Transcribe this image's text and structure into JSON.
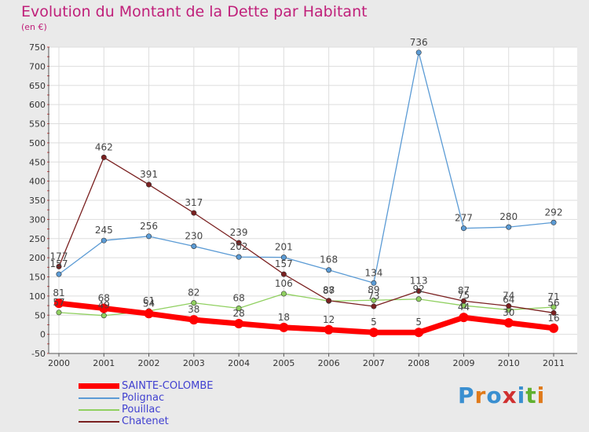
{
  "header": {
    "title": "Evolution du Montant de la Dette par Habitant",
    "subtitle": "(en €)"
  },
  "logo": {
    "text": "Proxiti",
    "colors": [
      "#3a8fd0",
      "#e07a1a",
      "#3a8fd0",
      "#d03030",
      "#3a8fd0",
      "#60b030",
      "#e07a1a"
    ]
  },
  "chart_data": {
    "type": "line",
    "title": "Evolution du Montant de la Dette par Habitant",
    "subtitle": "(en €)",
    "x": [
      "2000",
      "2001",
      "2002",
      "2003",
      "2004",
      "2005",
      "2006",
      "2007",
      "2008",
      "2009",
      "2010",
      "2011"
    ],
    "ylim": [
      -50,
      750
    ],
    "yticks": [
      -50,
      0,
      50,
      100,
      150,
      200,
      250,
      300,
      350,
      400,
      450,
      500,
      550,
      600,
      650,
      700,
      750
    ],
    "grid": true,
    "legend_position": "bottom-left",
    "series": [
      {
        "name": "SAINTE-COLOMBE",
        "color": "#ff0000",
        "values": [
          81,
          68,
          54,
          38,
          28,
          18,
          12,
          5,
          5,
          44,
          30,
          16
        ],
        "labels": [
          "81",
          "68",
          "54",
          "38",
          "28",
          "18",
          "12",
          "5",
          "5",
          "44",
          "30",
          "16"
        ]
      },
      {
        "name": "Polignac",
        "color": "#5b9bd5",
        "values": [
          157,
          245,
          256,
          230,
          202,
          201,
          168,
          134,
          736,
          277,
          280,
          292
        ],
        "labels": [
          "157",
          "245",
          "256",
          "230",
          "202",
          "201",
          "168",
          "134",
          "736",
          "277",
          "280",
          "292"
        ]
      },
      {
        "name": "Pouillac",
        "color": "#90d060",
        "values": [
          57,
          49,
          61,
          82,
          68,
          106,
          87,
          89,
          92,
          75,
          64,
          71
        ],
        "labels": [
          "57",
          "49",
          "61",
          "82",
          "68",
          "106",
          "87",
          "89",
          "92",
          "75",
          "64",
          "71"
        ]
      },
      {
        "name": "Chatenet",
        "color": "#7a2020",
        "values": [
          177,
          462,
          391,
          317,
          239,
          157,
          88,
          73,
          113,
          87,
          74,
          56
        ],
        "labels": [
          "177",
          "462",
          "391",
          "317",
          "239",
          "157",
          "88",
          "73",
          "113",
          "87",
          "74",
          "56"
        ]
      }
    ]
  }
}
